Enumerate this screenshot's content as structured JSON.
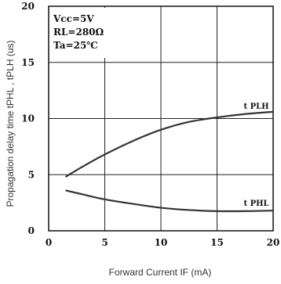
{
  "chart_data": {
    "type": "line",
    "xlabel": "Forward Current IF (mA)",
    "ylabel": "Propagation delay time tPHL , tPLH (us)",
    "xlim": [
      0,
      20
    ],
    "ylim": [
      0,
      20
    ],
    "x_ticks": [
      "0",
      "5",
      "10",
      "15",
      "20"
    ],
    "y_ticks": [
      "0",
      "5",
      "10",
      "15",
      "20"
    ],
    "grid": true,
    "conditions": [
      "Vcc=5V",
      "RL=280Ω",
      "Ta=25℃"
    ],
    "series": [
      {
        "name": "tPLH",
        "label": "t PLH",
        "x": [
          1.5,
          3,
          5,
          7.5,
          10,
          12.5,
          15,
          17.5,
          20
        ],
        "y": [
          4.8,
          5.7,
          6.8,
          8.0,
          9.0,
          9.7,
          10.1,
          10.4,
          10.6
        ]
      },
      {
        "name": "tPHL",
        "label": "t PHL",
        "x": [
          1.5,
          3,
          5,
          7.5,
          10,
          12.5,
          15,
          17.5,
          20
        ],
        "y": [
          3.6,
          3.25,
          2.8,
          2.4,
          2.05,
          1.85,
          1.75,
          1.75,
          1.8
        ]
      }
    ]
  }
}
